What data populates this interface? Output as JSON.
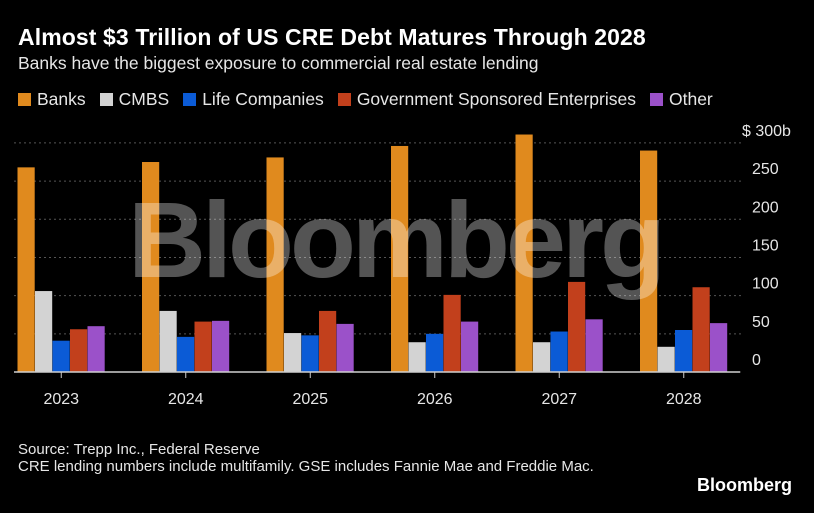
{
  "header": {
    "title": "Almost $3 Trillion of US CRE Debt Matures Through 2028",
    "subtitle": "Banks have the biggest exposure to commercial real estate lending"
  },
  "chart_data": {
    "type": "bar",
    "title": "Almost $3 Trillion of US CRE Debt Matures Through 2028",
    "subtitle": "Banks have the biggest exposure to commercial real estate lending",
    "categories": [
      "2023",
      "2024",
      "2025",
      "2026",
      "2027",
      "2028"
    ],
    "series": [
      {
        "name": "Banks",
        "color": "#e08a1e",
        "values": [
          268,
          275,
          281,
          296,
          311,
          290
        ]
      },
      {
        "name": "CMBS",
        "color": "#d3d3d3",
        "values": [
          106,
          80,
          51,
          39,
          39,
          33
        ]
      },
      {
        "name": "Life Companies",
        "color": "#0b5bd6",
        "values": [
          41,
          46,
          48,
          50,
          53,
          55
        ]
      },
      {
        "name": "Government Sponsored Enterprises",
        "color": "#c2401c",
        "values": [
          56,
          66,
          80,
          101,
          118,
          111
        ]
      },
      {
        "name": "Other",
        "color": "#9b51c9",
        "values": [
          60,
          67,
          63,
          66,
          69,
          64
        ]
      }
    ],
    "yticks": [
      0,
      50,
      100,
      150,
      200,
      250
    ],
    "ytick_labels": [
      "0",
      "50",
      "100",
      "150",
      "200",
      "250"
    ],
    "ylabel_top": "$ 300b",
    "ylim": [
      0,
      300
    ],
    "xlabel": "",
    "ylabel": "",
    "grid": true,
    "legend_position": "top-left"
  },
  "watermark": "Bloomberg",
  "footer": {
    "source": "Source: Trepp Inc., Federal Reserve",
    "note": "CRE lending numbers include multifamily. GSE includes Fannie Mae and Freddie Mac.",
    "brand": "Bloomberg"
  }
}
